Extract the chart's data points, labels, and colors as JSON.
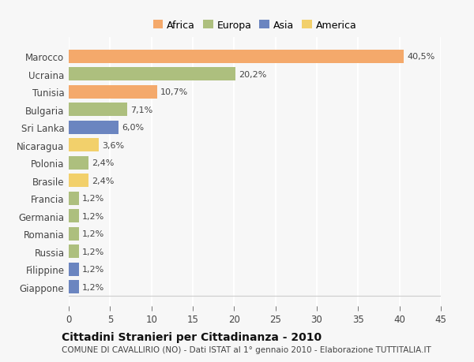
{
  "countries": [
    "Marocco",
    "Ucraina",
    "Tunisia",
    "Bulgaria",
    "Sri Lanka",
    "Nicaragua",
    "Polonia",
    "Brasile",
    "Francia",
    "Germania",
    "Romania",
    "Russia",
    "Filippine",
    "Giappone"
  ],
  "values": [
    40.5,
    20.2,
    10.7,
    7.1,
    6.0,
    3.6,
    2.4,
    2.4,
    1.2,
    1.2,
    1.2,
    1.2,
    1.2,
    1.2
  ],
  "labels": [
    "40,5%",
    "20,2%",
    "10,7%",
    "7,1%",
    "6,0%",
    "3,6%",
    "2,4%",
    "2,4%",
    "1,2%",
    "1,2%",
    "1,2%",
    "1,2%",
    "1,2%",
    "1,2%"
  ],
  "continents": [
    "Africa",
    "Europa",
    "Africa",
    "Europa",
    "Asia",
    "America",
    "Europa",
    "America",
    "Europa",
    "Europa",
    "Europa",
    "Europa",
    "Asia",
    "Asia"
  ],
  "colors": {
    "Africa": "#F4A96B",
    "Europa": "#ADBF7E",
    "Asia": "#6B85C0",
    "America": "#F2D06B"
  },
  "legend_order": [
    "Africa",
    "Europa",
    "Asia",
    "America"
  ],
  "xlim": [
    0,
    45
  ],
  "xticks": [
    0,
    5,
    10,
    15,
    20,
    25,
    30,
    35,
    40,
    45
  ],
  "title": "Cittadini Stranieri per Cittadinanza - 2010",
  "subtitle": "COMUNE DI CAVALLIRIO (NO) - Dati ISTAT al 1° gennaio 2010 - Elaborazione TUTTITALIA.IT",
  "bg_color": "#f7f7f7",
  "grid_color": "#ffffff",
  "bar_height": 0.75,
  "label_fontsize": 8,
  "ytick_fontsize": 8.5,
  "xtick_fontsize": 8.5,
  "legend_fontsize": 9,
  "title_fontsize": 10,
  "subtitle_fontsize": 7.5
}
